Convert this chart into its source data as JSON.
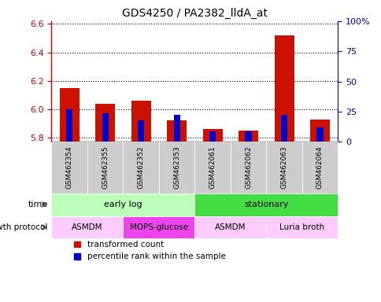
{
  "title": "GDS4250 / PA2382_lldA_at",
  "samples": [
    "GSM462354",
    "GSM462355",
    "GSM462352",
    "GSM462353",
    "GSM462061",
    "GSM462062",
    "GSM462063",
    "GSM462064"
  ],
  "red_values": [
    6.15,
    6.04,
    6.06,
    5.92,
    5.86,
    5.85,
    6.52,
    5.93
  ],
  "blue_values": [
    6.0,
    5.97,
    5.92,
    5.96,
    5.845,
    5.845,
    5.96,
    5.875
  ],
  "ylim_left": [
    5.77,
    6.62
  ],
  "ylim_right": [
    0,
    100
  ],
  "yticks_left": [
    5.8,
    6.0,
    6.2,
    6.4,
    6.6
  ],
  "yticks_right": [
    0,
    25,
    50,
    75,
    100
  ],
  "ytick_labels_right": [
    "0",
    "25",
    "50",
    "75",
    "100%"
  ],
  "time_groups": [
    {
      "label": "early log",
      "start": 0,
      "end": 4,
      "color": "#bbffbb"
    },
    {
      "label": "stationary",
      "start": 4,
      "end": 8,
      "color": "#44dd44"
    }
  ],
  "protocol_groups": [
    {
      "label": "ASMDM",
      "start": 0,
      "end": 2,
      "color": "#ffccff"
    },
    {
      "label": "MOPS-glucose",
      "start": 2,
      "end": 4,
      "color": "#ee44ee"
    },
    {
      "label": "ASMDM",
      "start": 4,
      "end": 6,
      "color": "#ffccff"
    },
    {
      "label": "Luria broth",
      "start": 6,
      "end": 8,
      "color": "#ffccff"
    }
  ],
  "legend_red": "transformed count",
  "legend_blue": "percentile rank within the sample",
  "left_axis_color": "#cc0000",
  "right_axis_color": "#0000cc",
  "background_color": "#ffffff",
  "bar_color_red": "#cc1100",
  "bar_color_blue": "#0000cc",
  "sample_box_color": "#cccccc",
  "time_label": "time",
  "protocol_label": "growth protocol"
}
